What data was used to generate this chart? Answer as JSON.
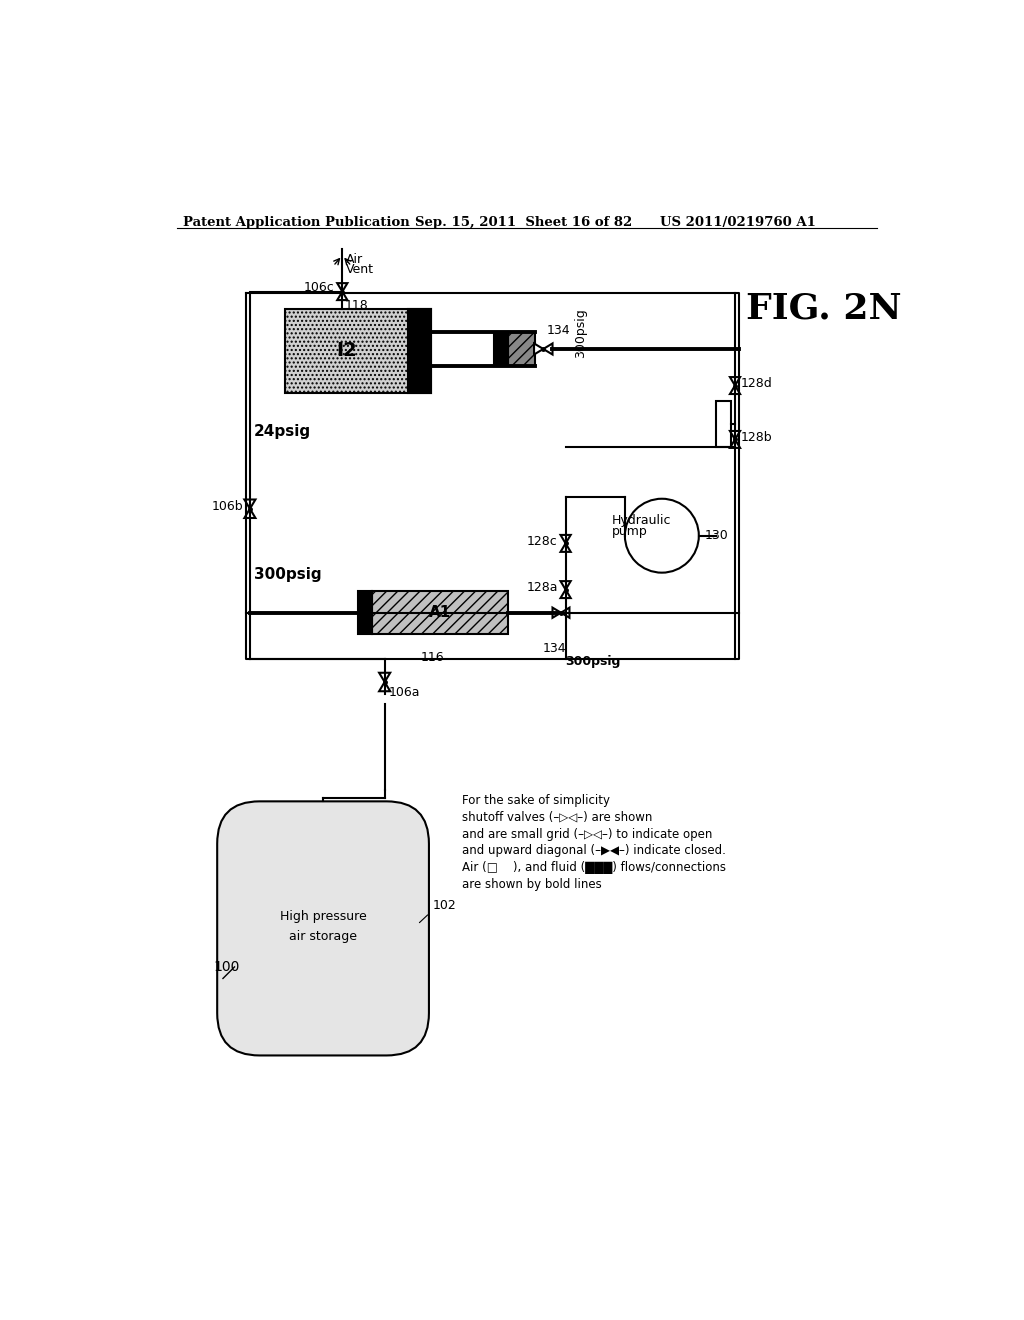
{
  "title_header": "Patent Application Publication",
  "title_date": "Sep. 15, 2011  Sheet 16 of 82",
  "title_patent": "US 2011/0219760 A1",
  "fig_label": "FIG. 2N",
  "background_color": "#ffffff",
  "text_color": "#000000"
}
